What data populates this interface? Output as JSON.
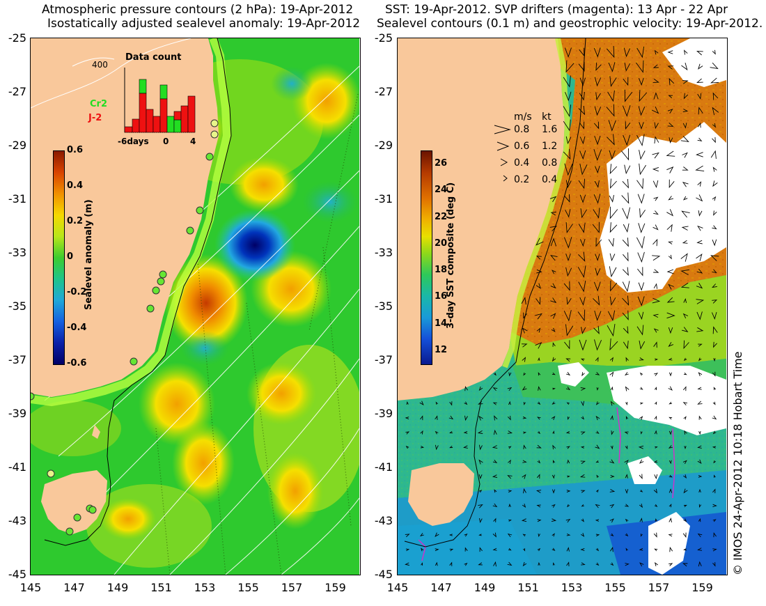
{
  "left_panel": {
    "title_line1": "Atmospheric pressure contours (2 hPa): 19-Apr-2012",
    "title_line2": "Isostatically adjusted sealevel anomaly: 19-Apr-2012",
    "colorbar": {
      "label": "Sealevel anomaly (m)",
      "ticks": [
        "0.6",
        "0.4",
        "0.2",
        "0",
        "-0.2",
        "-0.4",
        "-0.6"
      ],
      "range": [
        -0.6,
        0.6
      ]
    },
    "inset": {
      "title": "Data count",
      "y_label": "400",
      "x_ticks": [
        "-6days",
        "0",
        "4"
      ],
      "legend": [
        {
          "name": "Cr2",
          "color": "#22dd22"
        },
        {
          "name": "J-2",
          "color": "#ee1111"
        }
      ]
    },
    "pressure_label": "400"
  },
  "right_panel": {
    "title_line1": "SST: 19-Apr-2012. SVP drifters (magenta): 13 Apr - 22 Apr",
    "title_line2": "Sealevel contours (0.1 m) and geostrophic velocity: 19-Apr-2012.",
    "colorbar": {
      "label": "3-day SST composite (deg C)",
      "ticks": [
        "26",
        "24",
        "22",
        "20",
        "18",
        "16",
        "14",
        "12"
      ],
      "range": [
        11,
        27
      ]
    },
    "velocity_key": {
      "header_ms": "m/s",
      "header_kt": "kt",
      "rows": [
        {
          "ms": "0.8",
          "kt": "1.6"
        },
        {
          "ms": "0.6",
          "kt": "1.2"
        },
        {
          "ms": "0.4",
          "kt": "0.8"
        },
        {
          "ms": "0.2",
          "kt": "0.4"
        }
      ]
    }
  },
  "axes": {
    "y_ticks": [
      "-25",
      "-27",
      "-29",
      "-31",
      "-33",
      "-35",
      "-37",
      "-39",
      "-41",
      "-43",
      "-45"
    ],
    "x_ticks": [
      "145",
      "147",
      "149",
      "151",
      "153",
      "155",
      "157",
      "159"
    ]
  },
  "credit": "© IMOS 24-Apr-2012 10:18 Hobart Time",
  "colors": {
    "land": "#f9c89b",
    "ocean_green": "#33cc33",
    "anomaly_high": "#cc3300",
    "anomaly_low": "#000066",
    "sst_warm": "#d9770f",
    "sst_cool": "#1fa3c8"
  }
}
